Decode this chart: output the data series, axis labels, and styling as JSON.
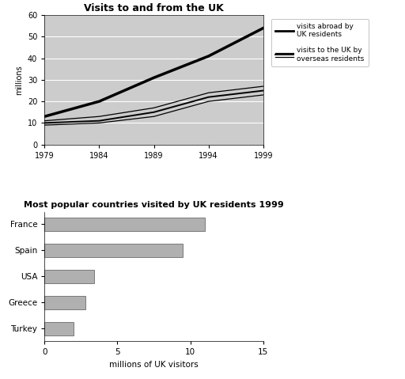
{
  "line_title": "Visits to and from the UK",
  "years": [
    1979,
    1984,
    1989,
    1994,
    1999
  ],
  "visits_abroad": [
    13,
    20,
    31,
    41,
    54
  ],
  "visits_to_uk_upper": [
    11,
    13,
    17,
    24,
    27
  ],
  "visits_to_uk_mid": [
    10,
    11,
    15,
    22,
    25
  ],
  "visits_to_uk_lower": [
    9,
    10,
    13,
    20,
    23
  ],
  "line_ylim": [
    0,
    60
  ],
  "line_ylabel": "millions",
  "line_xticks": [
    1979,
    1984,
    1989,
    1994,
    1999
  ],
  "legend_abroad": "visits abroad by\nUK residents",
  "legend_overseas": "visits to the UK by\noverseas residents",
  "bar_title": "Most popular countries visited by UK residents 1999",
  "bar_categories": [
    "Turkey",
    "Greece",
    "USA",
    "Spain",
    "France"
  ],
  "bar_values": [
    2.0,
    2.8,
    3.4,
    9.5,
    11.0
  ],
  "bar_color": "#b0b0b0",
  "bar_xlabel": "millions of UK visitors",
  "bar_xlim": [
    0,
    15
  ],
  "bar_xticks": [
    0,
    5,
    10,
    15
  ],
  "bg_color": "#cccccc",
  "line_color_abroad": "#000000",
  "line_color_overseas": "#444444"
}
